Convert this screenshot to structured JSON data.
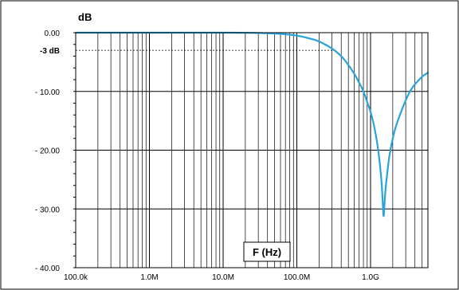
{
  "chart_data": {
    "type": "line",
    "xlabel": "F (Hz)",
    "ylabel": "dB",
    "x_scale": "log",
    "xlim": [
      100000,
      6000000000
    ],
    "ylim": [
      -40,
      0
    ],
    "x_ticks": [
      100000,
      1000000,
      10000000,
      100000000,
      1000000000
    ],
    "x_tick_labels": [
      "100.0k",
      "1.0M",
      "10.0M",
      "100.0M",
      "1.0G"
    ],
    "y_ticks": [
      0,
      -10,
      -20,
      -30,
      -40
    ],
    "y_tick_labels": [
      "0.00",
      "- 10.00",
      "- 20.00",
      "- 30.00",
      "- 40.00"
    ],
    "grid": true,
    "reference_line": {
      "y": -3,
      "label": "-3 dB",
      "x_end": 350000000
    },
    "series": [
      {
        "color": "#2aa3dc",
        "x": [
          100000,
          10000000,
          30000000,
          60000000,
          100000000,
          150000000,
          200000000,
          300000000,
          400000000,
          500000000,
          600000000,
          700000000,
          800000000,
          900000000,
          1000000000,
          1100000000,
          1200000000,
          1300000000,
          1400000000,
          1450000000,
          1500000000,
          1550000000,
          1600000000,
          1700000000,
          1800000000,
          2000000000,
          2200000000,
          2500000000,
          3000000000,
          3500000000,
          4000000000,
          5000000000,
          6000000000
        ],
        "y": [
          0,
          0,
          -0.05,
          -0.2,
          -0.5,
          -1.0,
          -1.5,
          -2.7,
          -4.0,
          -5.5,
          -7.0,
          -8.5,
          -10.0,
          -11.8,
          -13.5,
          -15.5,
          -18.0,
          -21.0,
          -25.0,
          -28.0,
          -31.2,
          -29.0,
          -26.5,
          -23.5,
          -21.0,
          -18.0,
          -16.0,
          -14.0,
          -11.5,
          -9.8,
          -8.8,
          -7.5,
          -6.8
        ]
      }
    ]
  }
}
